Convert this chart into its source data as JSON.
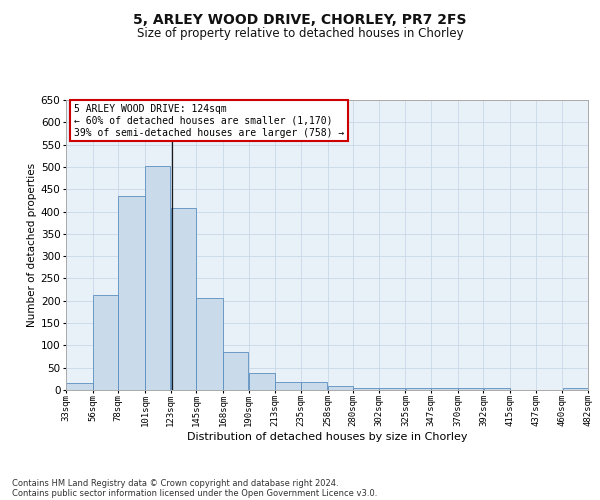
{
  "title1": "5, ARLEY WOOD DRIVE, CHORLEY, PR7 2FS",
  "title2": "Size of property relative to detached houses in Chorley",
  "xlabel": "Distribution of detached houses by size in Chorley",
  "ylabel": "Number of detached properties",
  "footnote1": "Contains HM Land Registry data © Crown copyright and database right 2024.",
  "footnote2": "Contains public sector information licensed under the Open Government Licence v3.0.",
  "annotation_title": "5 ARLEY WOOD DRIVE: 124sqm",
  "annotation_line1": "← 60% of detached houses are smaller (1,170)",
  "annotation_line2": "39% of semi-detached houses are larger (758) →",
  "subject_size": 124,
  "bar_left_edges": [
    33,
    56,
    78,
    101,
    123,
    145,
    168,
    190,
    213,
    235,
    258,
    280,
    302,
    325,
    347,
    370,
    392,
    415,
    437,
    460
  ],
  "bar_widths": [
    23,
    22,
    23,
    22,
    22,
    23,
    22,
    23,
    22,
    23,
    22,
    22,
    23,
    22,
    23,
    22,
    23,
    22,
    23,
    22
  ],
  "bar_heights": [
    15,
    213,
    435,
    503,
    407,
    207,
    85,
    38,
    18,
    17,
    10,
    5,
    5,
    5,
    5,
    5,
    5,
    0,
    0,
    4
  ],
  "bar_color": "#c9daea",
  "bar_edge_color": "#5a8fc0",
  "marker_line_color": "#1a1a1a",
  "annotation_box_color": "#ffffff",
  "annotation_box_edge": "#cc0000",
  "grid_color": "#c8d8e8",
  "background_color": "#e8f0f8",
  "ylim": [
    0,
    650
  ],
  "xlim": [
    33,
    482
  ],
  "yticks": [
    0,
    50,
    100,
    150,
    200,
    250,
    300,
    350,
    400,
    450,
    500,
    550,
    600,
    650
  ],
  "xtick_labels": [
    "33sqm",
    "56sqm",
    "78sqm",
    "101sqm",
    "123sqm",
    "145sqm",
    "168sqm",
    "190sqm",
    "213sqm",
    "235sqm",
    "258sqm",
    "280sqm",
    "302sqm",
    "325sqm",
    "347sqm",
    "370sqm",
    "392sqm",
    "415sqm",
    "437sqm",
    "460sqm",
    "482sqm"
  ],
  "xtick_positions": [
    33,
    56,
    78,
    101,
    123,
    145,
    168,
    190,
    213,
    235,
    258,
    280,
    302,
    325,
    347,
    370,
    392,
    415,
    437,
    460,
    482
  ]
}
